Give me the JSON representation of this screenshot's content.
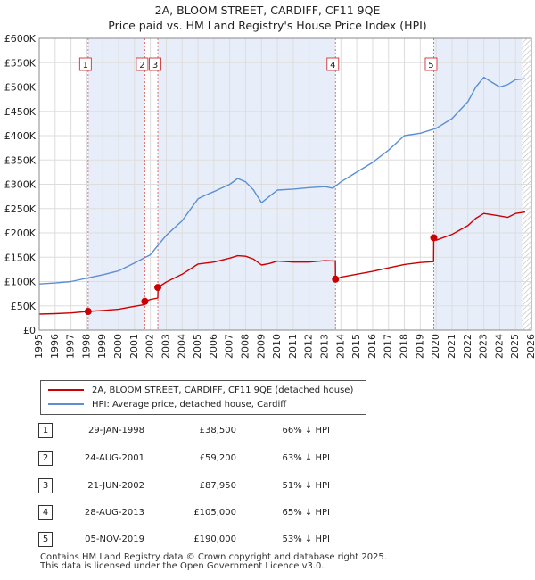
{
  "chart_data": {
    "type": "line",
    "title": "2A, BLOOM STREET, CARDIFF, CF11 9QE",
    "subtitle": "Price paid vs. HM Land Registry's House Price Index (HPI)",
    "xlim": [
      1995,
      2026
    ],
    "ylim": [
      0,
      600000
    ],
    "x_ticks": [
      "1995",
      "1996",
      "1997",
      "1998",
      "1999",
      "2000",
      "2001",
      "2002",
      "2003",
      "2004",
      "2005",
      "2006",
      "2007",
      "2008",
      "2009",
      "2010",
      "2011",
      "2012",
      "2013",
      "2014",
      "2015",
      "2016",
      "2017",
      "2018",
      "2019",
      "2020",
      "2021",
      "2022",
      "2023",
      "2024",
      "2025",
      "2026"
    ],
    "y_ticks": [
      {
        "value": 0,
        "label": "£0"
      },
      {
        "value": 50000,
        "label": "£50K"
      },
      {
        "value": 100000,
        "label": "£100K"
      },
      {
        "value": 150000,
        "label": "£150K"
      },
      {
        "value": 200000,
        "label": "£200K"
      },
      {
        "value": 250000,
        "label": "£250K"
      },
      {
        "value": 300000,
        "label": "£300K"
      },
      {
        "value": 350000,
        "label": "£350K"
      },
      {
        "value": 400000,
        "label": "£400K"
      },
      {
        "value": 450000,
        "label": "£450K"
      },
      {
        "value": 500000,
        "label": "£500K"
      },
      {
        "value": 550000,
        "label": "£550K"
      },
      {
        "value": 600000,
        "label": "£600K"
      }
    ],
    "grid": true,
    "shaded_ranges": [
      [
        1998.08,
        2001.65
      ],
      [
        2002.47,
        2013.66
      ],
      [
        2019.85,
        2025.4
      ]
    ],
    "hatched_from": 2025.4,
    "series": [
      {
        "name": "2A, BLOOM STREET, CARDIFF, CF11 9QE (detached house)",
        "color": "#cc0000",
        "points": [
          [
            1995.0,
            33000
          ],
          [
            1996.0,
            34000
          ],
          [
            1997.0,
            35500
          ],
          [
            1998.08,
            38500
          ],
          [
            1999.0,
            40500
          ],
          [
            2000.0,
            43000
          ],
          [
            2001.0,
            49000
          ],
          [
            2001.64,
            52500
          ],
          [
            2001.65,
            59200
          ],
          [
            2002.0,
            63000
          ],
          [
            2002.47,
            66000
          ],
          [
            2002.48,
            87950
          ],
          [
            2003.0,
            99000
          ],
          [
            2004.0,
            115000
          ],
          [
            2005.0,
            136000
          ],
          [
            2006.0,
            140000
          ],
          [
            2007.0,
            148000
          ],
          [
            2007.5,
            153000
          ],
          [
            2008.0,
            152000
          ],
          [
            2008.5,
            146000
          ],
          [
            2009.0,
            134000
          ],
          [
            2009.5,
            137000
          ],
          [
            2010.0,
            142000
          ],
          [
            2011.0,
            140000
          ],
          [
            2012.0,
            140000
          ],
          [
            2013.0,
            143000
          ],
          [
            2013.65,
            142000
          ],
          [
            2013.66,
            105000
          ],
          [
            2014.0,
            109000
          ],
          [
            2015.0,
            115000
          ],
          [
            2016.0,
            121000
          ],
          [
            2017.0,
            128000
          ],
          [
            2018.0,
            135000
          ],
          [
            2019.0,
            139000
          ],
          [
            2019.84,
            141000
          ],
          [
            2019.85,
            190000
          ],
          [
            2020.0,
            185000
          ],
          [
            2021.0,
            197000
          ],
          [
            2022.0,
            215000
          ],
          [
            2022.5,
            230000
          ],
          [
            2023.0,
            240000
          ],
          [
            2024.0,
            235000
          ],
          [
            2024.5,
            232000
          ],
          [
            2025.0,
            240000
          ],
          [
            2025.6,
            243000
          ]
        ]
      },
      {
        "name": "HPI: Average price, detached house, Cardiff",
        "color": "#5b8fd4",
        "points": [
          [
            1995.0,
            95000
          ],
          [
            1996.0,
            97000
          ],
          [
            1997.0,
            100000
          ],
          [
            1998.0,
            107000
          ],
          [
            1999.0,
            114000
          ],
          [
            2000.0,
            122000
          ],
          [
            2001.0,
            138000
          ],
          [
            2002.0,
            155000
          ],
          [
            2002.5,
            175000
          ],
          [
            2003.0,
            195000
          ],
          [
            2004.0,
            225000
          ],
          [
            2005.0,
            270000
          ],
          [
            2005.5,
            278000
          ],
          [
            2006.0,
            285000
          ],
          [
            2007.0,
            300000
          ],
          [
            2007.5,
            312000
          ],
          [
            2008.0,
            305000
          ],
          [
            2008.5,
            288000
          ],
          [
            2009.0,
            262000
          ],
          [
            2009.5,
            275000
          ],
          [
            2010.0,
            288000
          ],
          [
            2011.0,
            290000
          ],
          [
            2012.0,
            293000
          ],
          [
            2013.0,
            295000
          ],
          [
            2013.5,
            292000
          ],
          [
            2014.0,
            305000
          ],
          [
            2015.0,
            325000
          ],
          [
            2016.0,
            345000
          ],
          [
            2017.0,
            370000
          ],
          [
            2018.0,
            400000
          ],
          [
            2019.0,
            405000
          ],
          [
            2020.0,
            415000
          ],
          [
            2021.0,
            435000
          ],
          [
            2022.0,
            470000
          ],
          [
            2022.5,
            500000
          ],
          [
            2023.0,
            520000
          ],
          [
            2023.5,
            510000
          ],
          [
            2024.0,
            500000
          ],
          [
            2024.5,
            505000
          ],
          [
            2025.0,
            515000
          ],
          [
            2025.6,
            517000
          ]
        ]
      }
    ],
    "sales": [
      {
        "num": "1",
        "x": 1998.08,
        "value": 38500
      },
      {
        "num": "2",
        "x": 2001.65,
        "value": 59200
      },
      {
        "num": "3",
        "x": 2002.47,
        "value": 87950
      },
      {
        "num": "4",
        "x": 2013.66,
        "value": 105000
      },
      {
        "num": "5",
        "x": 2019.85,
        "value": 190000
      }
    ]
  },
  "legend": {
    "items": [
      {
        "label": "2A, BLOOM STREET, CARDIFF, CF11 9QE (detached house)",
        "color": "#cc0000"
      },
      {
        "label": "HPI: Average price, detached house, Cardiff",
        "color": "#5b8fd4"
      }
    ]
  },
  "sales_table": [
    {
      "num": "1",
      "date": "29-JAN-1998",
      "price": "£38,500",
      "hpi": "66% ↓ HPI"
    },
    {
      "num": "2",
      "date": "24-AUG-2001",
      "price": "£59,200",
      "hpi": "63% ↓ HPI"
    },
    {
      "num": "3",
      "date": "21-JUN-2002",
      "price": "£87,950",
      "hpi": "51% ↓ HPI"
    },
    {
      "num": "4",
      "date": "28-AUG-2013",
      "price": "£105,000",
      "hpi": "65% ↓ HPI"
    },
    {
      "num": "5",
      "date": "05-NOV-2019",
      "price": "£190,000",
      "hpi": "53% ↓ HPI"
    }
  ],
  "footer": {
    "line1": "Contains HM Land Registry data © Crown copyright and database right 2025.",
    "line2": "This data is licensed under the Open Government Licence v3.0."
  }
}
